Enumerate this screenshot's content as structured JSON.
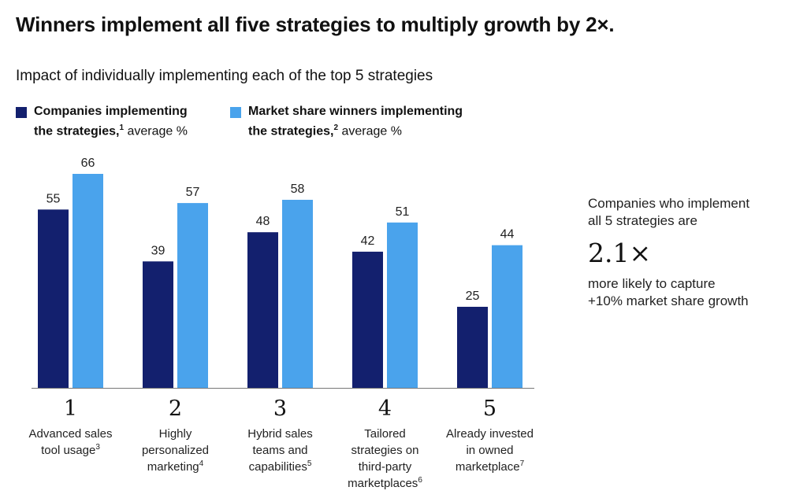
{
  "header": {
    "title": "Winners implement all five strategies to multiply growth by 2×.",
    "subtitle": "Impact of individually implementing each of the top 5 strategies"
  },
  "legend": [
    {
      "line1": "Companies implementing",
      "line2_bold": "the strategies,",
      "sup": "1",
      "line2_rest": " average %",
      "color": "#13206e"
    },
    {
      "line1": "Market share winners implementing",
      "line2_bold": "the strategies,",
      "sup": "2",
      "line2_rest": " average %",
      "color": "#4aa3ec"
    }
  ],
  "chart_data": {
    "type": "bar",
    "categories": [
      {
        "number": "1",
        "lines": [
          "Advanced sales",
          "tool usage"
        ],
        "sup": "3"
      },
      {
        "number": "2",
        "lines": [
          "Highly",
          "personalized",
          "marketing"
        ],
        "sup": "4"
      },
      {
        "number": "3",
        "lines": [
          "Hybrid sales",
          "teams and",
          "capabilities"
        ],
        "sup": "5"
      },
      {
        "number": "4",
        "lines": [
          "Tailored",
          "strategies on",
          "third-party",
          "marketplaces"
        ],
        "sup": "6"
      },
      {
        "number": "5",
        "lines": [
          "Already invested",
          "in owned",
          "marketplace"
        ],
        "sup": "7"
      }
    ],
    "series": [
      {
        "name": "Companies implementing the strategies",
        "values": [
          55,
          39,
          48,
          42,
          25
        ],
        "color": "#13206e"
      },
      {
        "name": "Market share winners implementing the strategies",
        "values": [
          66,
          57,
          58,
          51,
          44
        ],
        "color": "#4aa3ec"
      }
    ],
    "ylim": [
      0,
      66
    ],
    "grid": false,
    "legend_position": "top-left"
  },
  "callout": {
    "line1": "Companies who implement",
    "line2": "all 5 strategies are",
    "value": "2.1×",
    "line3": "more likely to capture",
    "line4": "+10% market share growth"
  }
}
